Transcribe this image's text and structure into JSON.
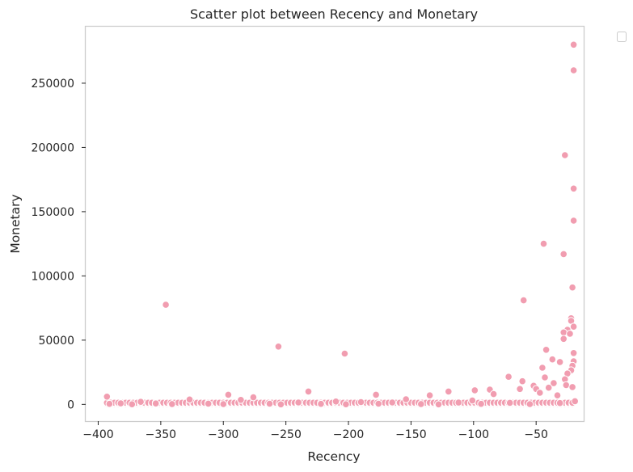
{
  "chart_data": {
    "type": "scatter",
    "title": "Scatter plot between Recency and Monetary",
    "xlabel": "Recency",
    "ylabel": "Monetary",
    "xlim": [
      -410,
      -12
    ],
    "ylim": [
      -13000,
      294000
    ],
    "xticks": [
      -400,
      -350,
      -300,
      -250,
      -200,
      -150,
      -100,
      -50
    ],
    "xtick_labels": [
      "−400",
      "−350",
      "−300",
      "−250",
      "−200",
      "−150",
      "−100",
      "−50"
    ],
    "yticks": [
      0,
      50000,
      100000,
      150000,
      200000,
      250000
    ],
    "ytick_labels": [
      "0",
      "50000",
      "100000",
      "150000",
      "200000",
      "250000"
    ],
    "grid": false,
    "legend": {
      "placement": "upper-right-outside",
      "entries": []
    },
    "color": "#f19db0",
    "series": [
      {
        "points": [
          [
            -20,
            280000
          ],
          [
            -20,
            260000
          ],
          [
            -27,
            194000
          ],
          [
            -20,
            168000
          ],
          [
            -20,
            143000
          ],
          [
            -44,
            125000
          ],
          [
            -28,
            117000
          ],
          [
            -21,
            91000
          ],
          [
            -60,
            81000
          ],
          [
            -346,
            77500
          ],
          [
            -22,
            67000
          ],
          [
            -22,
            65000
          ],
          [
            -20,
            60500
          ],
          [
            -25,
            58000
          ],
          [
            -28,
            56000
          ],
          [
            -23,
            55000
          ],
          [
            -28,
            51000
          ],
          [
            -256,
            45000
          ],
          [
            -42,
            42500
          ],
          [
            -20,
            40000
          ],
          [
            -203,
            39500
          ],
          [
            -37,
            35000
          ],
          [
            -20,
            33500
          ],
          [
            -31,
            33000
          ],
          [
            -21,
            30000
          ],
          [
            -45,
            28500
          ],
          [
            -22,
            26500
          ],
          [
            -25,
            24000
          ],
          [
            -72,
            21500
          ],
          [
            -43,
            21000
          ],
          [
            -27,
            19500
          ],
          [
            -61,
            18000
          ],
          [
            -36,
            16500
          ],
          [
            -26,
            15000
          ],
          [
            -52,
            14500
          ],
          [
            -21,
            13500
          ],
          [
            -40,
            13000
          ],
          [
            -50,
            12000
          ],
          [
            -63,
            12000
          ],
          [
            -87,
            11500
          ],
          [
            -99,
            11000
          ],
          [
            -120,
            10000
          ],
          [
            -232,
            10000
          ],
          [
            -47,
            9000
          ],
          [
            -84,
            8000
          ],
          [
            -296,
            7500
          ],
          [
            -178,
            7500
          ],
          [
            -135,
            7000
          ],
          [
            -33,
            7000
          ],
          [
            -393,
            6000
          ],
          [
            -276,
            5500
          ],
          [
            -154,
            4000
          ],
          [
            -327,
            3800
          ],
          [
            -286,
            3500
          ],
          [
            -101,
            3000
          ],
          [
            -19,
            2500
          ],
          [
            -210,
            2200
          ],
          [
            -366,
            2000
          ],
          [
            -240,
            1500
          ],
          [
            -190,
            1800
          ],
          [
            -165,
            1500
          ],
          [
            -112,
            1400
          ],
          [
            -71,
            1200
          ],
          [
            -31,
            1000
          ],
          [
            -382,
            800
          ],
          [
            -354,
            700
          ],
          [
            -312,
            600
          ],
          [
            -263,
            500
          ],
          [
            -222,
            400
          ],
          [
            -176,
            500
          ],
          [
            -142,
            300
          ],
          [
            -94,
            400
          ],
          [
            -55,
            200
          ],
          [
            -373,
            100
          ],
          [
            -254,
            0
          ],
          [
            -391,
            400
          ],
          [
            -341,
            300
          ],
          [
            -300,
            200
          ],
          [
            -202,
            100
          ],
          [
            -128,
            0
          ]
        ]
      }
    ],
    "band": {
      "x_from": -393,
      "x_to": -19,
      "step": 3,
      "y_values": [
        0,
        600,
        1300
      ]
    }
  }
}
